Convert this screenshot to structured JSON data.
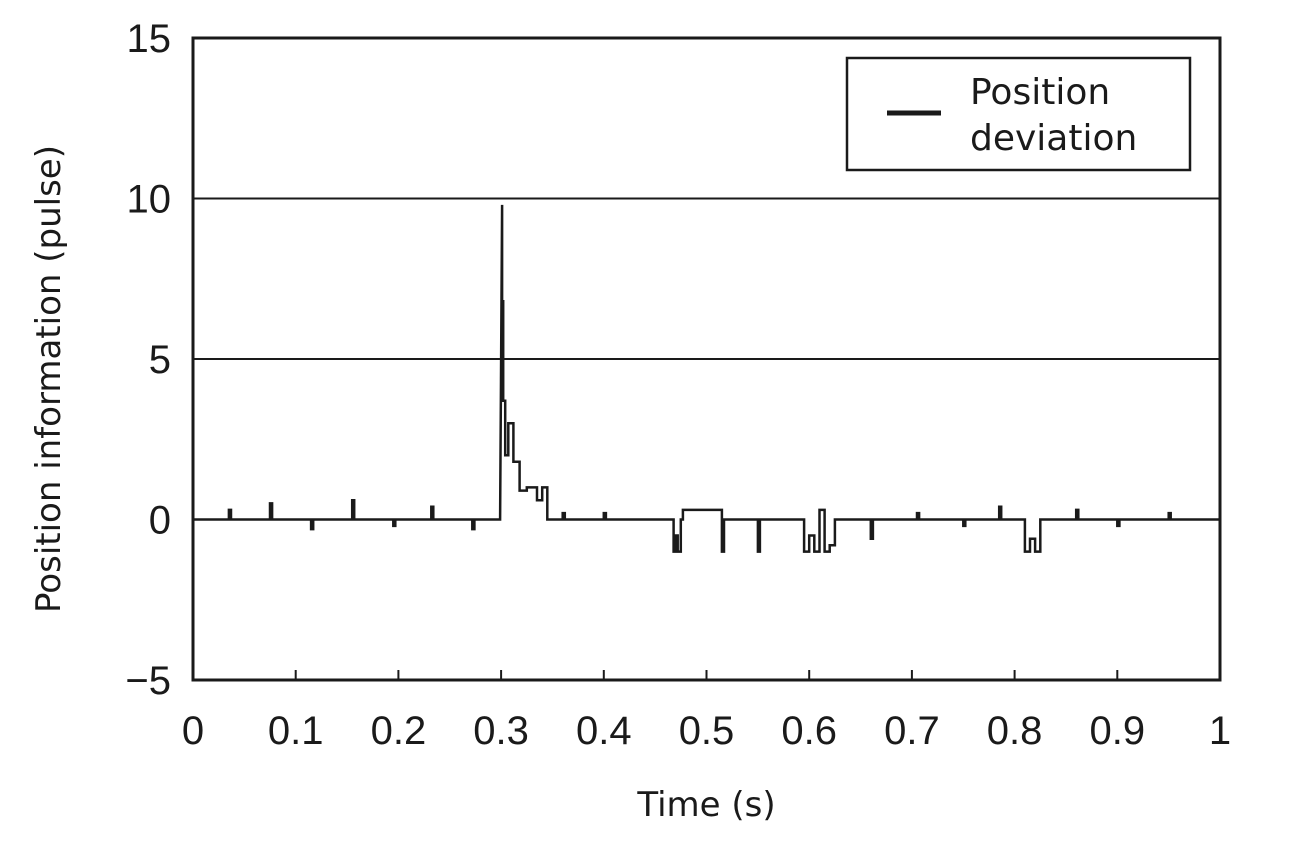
{
  "chart_data": {
    "type": "line",
    "title": "",
    "xlabel": "Time (s)",
    "ylabel": "Position information (pulse)",
    "xlim": [
      0,
      1
    ],
    "ylim": [
      -5,
      15
    ],
    "x_ticks": [
      0,
      0.1,
      0.2,
      0.3,
      0.4,
      0.5,
      0.6,
      0.7,
      0.8,
      0.9,
      1
    ],
    "x_tick_labels": [
      "0",
      "0.1",
      "0.2",
      "0.3",
      "0.4",
      "0.5",
      "0.6",
      "0.7",
      "0.8",
      "0.9",
      "1"
    ],
    "y_ticks": [
      -5,
      0,
      5,
      10,
      15
    ],
    "y_tick_labels": [
      "−5",
      "0",
      "5",
      "10",
      "15"
    ],
    "grid": "horizontal gridlines at 5 and 10",
    "legend_position": "top-right",
    "series": [
      {
        "name": "Position deviation",
        "color": "#1a1a1a",
        "x": [
          0,
          0.035,
          0.035,
          0.037,
          0.037,
          0.075,
          0.075,
          0.077,
          0.077,
          0.115,
          0.115,
          0.117,
          0.117,
          0.155,
          0.155,
          0.157,
          0.157,
          0.195,
          0.195,
          0.197,
          0.197,
          0.232,
          0.232,
          0.234,
          0.234,
          0.272,
          0.272,
          0.274,
          0.274,
          0.299,
          0.301,
          0.301,
          0.302,
          0.302,
          0.304,
          0.304,
          0.307,
          0.307,
          0.312,
          0.312,
          0.318,
          0.318,
          0.325,
          0.325,
          0.335,
          0.335,
          0.34,
          0.34,
          0.345,
          0.345,
          0.36,
          0.36,
          0.362,
          0.362,
          0.4,
          0.4,
          0.402,
          0.402,
          0.468,
          0.468,
          0.47,
          0.47,
          0.472,
          0.472,
          0.475,
          0.475,
          0.477,
          0.477,
          0.515,
          0.515,
          0.517,
          0.517,
          0.55,
          0.55,
          0.552,
          0.552,
          0.595,
          0.595,
          0.6,
          0.6,
          0.605,
          0.605,
          0.61,
          0.61,
          0.615,
          0.615,
          0.62,
          0.62,
          0.625,
          0.625,
          0.66,
          0.66,
          0.662,
          0.662,
          0.705,
          0.705,
          0.707,
          0.707,
          0.75,
          0.75,
          0.752,
          0.752,
          0.785,
          0.785,
          0.787,
          0.787,
          0.81,
          0.81,
          0.815,
          0.815,
          0.82,
          0.82,
          0.825,
          0.825,
          0.86,
          0.86,
          0.862,
          0.862,
          0.9,
          0.9,
          0.902,
          0.902,
          0.95,
          0.95,
          0.952,
          0.952,
          1.0
        ],
        "y": [
          0,
          0,
          0.3,
          0.3,
          0,
          0,
          0.5,
          0.5,
          0,
          0,
          -0.3,
          -0.3,
          0,
          0,
          0.6,
          0.6,
          0,
          0,
          -0.2,
          -0.2,
          0,
          0,
          0.4,
          0.4,
          0,
          0,
          -0.3,
          -0.3,
          0,
          0,
          9.8,
          6.8,
          6.8,
          3.7,
          3.7,
          2.0,
          2.0,
          3.0,
          3.0,
          1.8,
          1.8,
          0.9,
          0.9,
          1.0,
          1.0,
          0.6,
          0.6,
          1.0,
          1.0,
          0,
          0,
          0.2,
          0.2,
          0,
          0,
          0.2,
          0.2,
          0,
          0,
          -1.0,
          -1.0,
          -0.5,
          -0.5,
          -1.0,
          -1.0,
          0,
          0,
          0.3,
          0.3,
          -1.0,
          -1.0,
          0,
          0,
          -1.0,
          -1.0,
          0,
          0,
          -1.0,
          -1.0,
          -0.5,
          -0.5,
          -1.0,
          -1.0,
          0.3,
          0.3,
          -1.0,
          -1.0,
          -0.8,
          -0.8,
          0,
          0,
          -0.6,
          -0.6,
          0,
          0,
          0.2,
          0.2,
          0,
          0,
          -0.2,
          -0.2,
          0,
          0,
          0.4,
          0.4,
          0,
          0,
          -1.0,
          -1.0,
          -0.6,
          -0.6,
          -1.0,
          -1.0,
          0,
          0,
          0.3,
          0.3,
          0,
          0,
          -0.2,
          -0.2,
          0,
          0,
          0.2,
          0.2,
          0,
          0
        ]
      }
    ]
  }
}
